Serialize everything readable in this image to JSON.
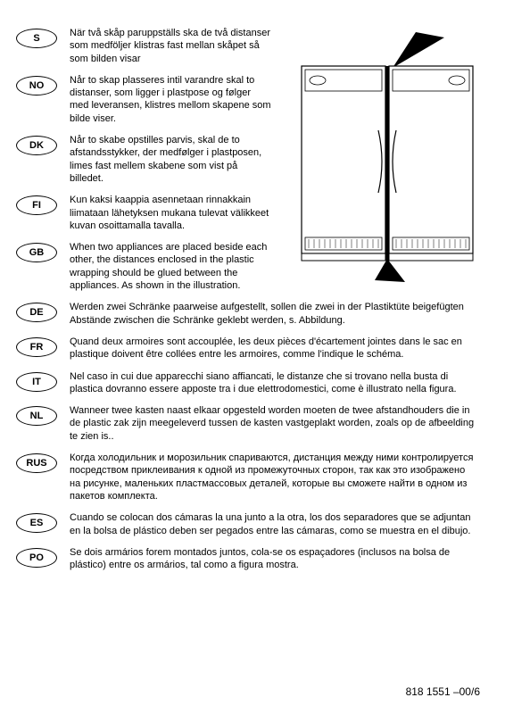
{
  "languages": [
    {
      "code": "S",
      "narrow": true,
      "text": "När två skåp paruppställs ska de två distanser som medföljer klistras fast mellan skåpet så som bilden visar"
    },
    {
      "code": "NO",
      "narrow": true,
      "text": "Når to skap plasseres intil varandre skal to distanser, som ligger i plastpose og følger med leveransen, klistres mellom skapene som bilde viser."
    },
    {
      "code": "DK",
      "narrow": true,
      "text": "Når to skabe opstilles parvis, skal de to afstandsstykker, der medfølger i plastposen, limes fast mellem skabene som vist på billedet."
    },
    {
      "code": "FI",
      "narrow": true,
      "text": "Kun kaksi kaappia asennetaan rinnakkain liimataan lähetyksen mukana tulevat välikkeet kuvan osoittamalla tavalla."
    },
    {
      "code": "GB",
      "narrow": true,
      "text": "When two appliances are placed beside each other, the distances enclosed in the plastic wrapping should be glued between the appliances. As shown in the illustration."
    },
    {
      "code": "DE",
      "narrow": false,
      "text": "Werden zwei Schränke paarweise aufgestellt, sollen die zwei in der Plastiktüte beigefügten Abstände zwischen die Schränke geklebt werden, s. Abbildung."
    },
    {
      "code": "FR",
      "narrow": false,
      "text": "Quand deux armoires sont accouplée, les deux pièces d'écartement jointes dans le sac en plastique doivent être collées entre les armoires, comme l'indique le schéma."
    },
    {
      "code": "IT",
      "narrow": false,
      "text": "Nel caso in cui due apparecchi siano affiancati, le distanze che si trovano nella busta di plastica dovranno essere apposte tra i due elettrodomestici, come è illustrato nella figura."
    },
    {
      "code": "NL",
      "narrow": false,
      "text": "Wanneer twee kasten naast elkaar opgesteld worden moeten de twee afstandhouders die in de plastic zak zijn meegeleverd tussen de kasten vastgeplakt worden, zoals op de afbeelding te zien is.."
    },
    {
      "code": "RUS",
      "narrow": false,
      "text": "Когда холодильник и морозильник спариваются, дистанция между ними контролируется посредством приклеивания к одной из промежуточных сторон, так как это изображено на рисунке, маленьких пластмассовых деталей, которые вы сможете найти в одном из пакетов комплекта."
    },
    {
      "code": "ES",
      "narrow": false,
      "text": "Cuando se colocan dos cámaras la una junto a la otra, los dos separadores que se adjuntan en la bolsa de plástico deben ser pegados entre las cámaras, como se muestra en el dibujo."
    },
    {
      "code": "PO",
      "narrow": false,
      "text": "Se dois armários forem montados juntos, cola-se os espaçadores (inclusos na bolsa de plástico) entre os armários, tal como a figura mostra."
    }
  ],
  "page_ref": "818 1551 –00/6",
  "illustration": {
    "stroke": "#000000",
    "fill": "#ffffff",
    "cabinets": 2
  }
}
